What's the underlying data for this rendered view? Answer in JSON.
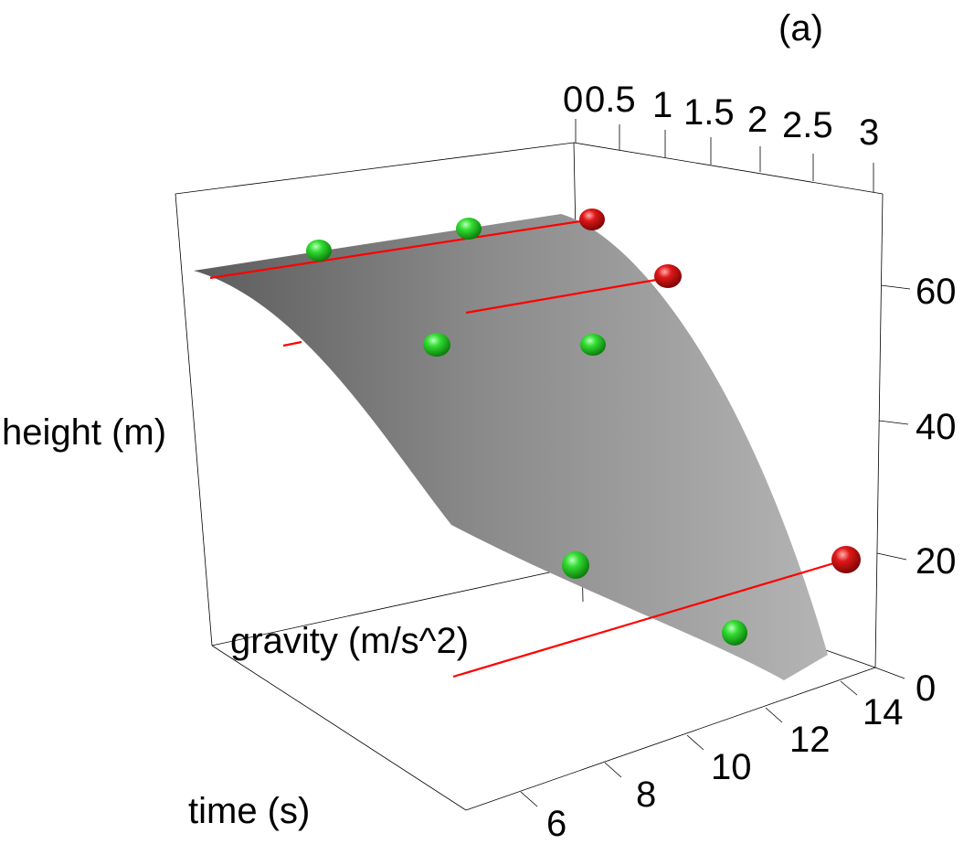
{
  "chart_data": {
    "type": "scatter",
    "subtype": "3d-surface",
    "panel_label": "(a)",
    "axes": {
      "x": {
        "label": "time (s)",
        "ticks": [
          "6",
          "8",
          "10",
          "12",
          "14"
        ],
        "range": [
          5,
          15
        ]
      },
      "y": {
        "label": "gravity (m/s^2)",
        "ticks": [
          "0",
          "0.5",
          "1",
          "1.5",
          "2",
          "2.5",
          "3"
        ],
        "range": [
          0,
          3
        ]
      },
      "z": {
        "label": "height (m)",
        "ticks": [
          "0",
          "20",
          "40",
          "60"
        ],
        "range": [
          0,
          70
        ]
      }
    },
    "grid": false,
    "surface": {
      "color": "#9a9a9a",
      "description_points": [
        {
          "time": 5,
          "gravity": 0,
          "height": 62
        },
        {
          "time": 15,
          "gravity": 0,
          "height": 0
        },
        {
          "time": 5,
          "gravity": 3,
          "height": 66
        },
        {
          "time": 15,
          "gravity": 3,
          "height": 5
        }
      ]
    },
    "series": [
      {
        "marker_color": "#22cc22",
        "points": [
          {
            "time": 6,
            "gravity": 0.6,
            "height": 62
          },
          {
            "time": 6,
            "gravity": 2.0,
            "height": 64
          },
          {
            "time": 10,
            "gravity": 1.2,
            "height": 48
          },
          {
            "time": 10,
            "gravity": 2.4,
            "height": 50
          },
          {
            "time": 13,
            "gravity": 1.0,
            "height": 10
          },
          {
            "time": 14,
            "gravity": 2.2,
            "height": 6
          }
        ]
      },
      {
        "marker_color": "#dd1111",
        "points": [
          {
            "time": 7,
            "gravity": 3.0,
            "height": 66
          },
          {
            "time": 10,
            "gravity": 3.0,
            "height": 58
          },
          {
            "time": 15,
            "gravity": 3.0,
            "height": 18
          }
        ]
      }
    ],
    "red_segments_color": "#ff0000"
  }
}
